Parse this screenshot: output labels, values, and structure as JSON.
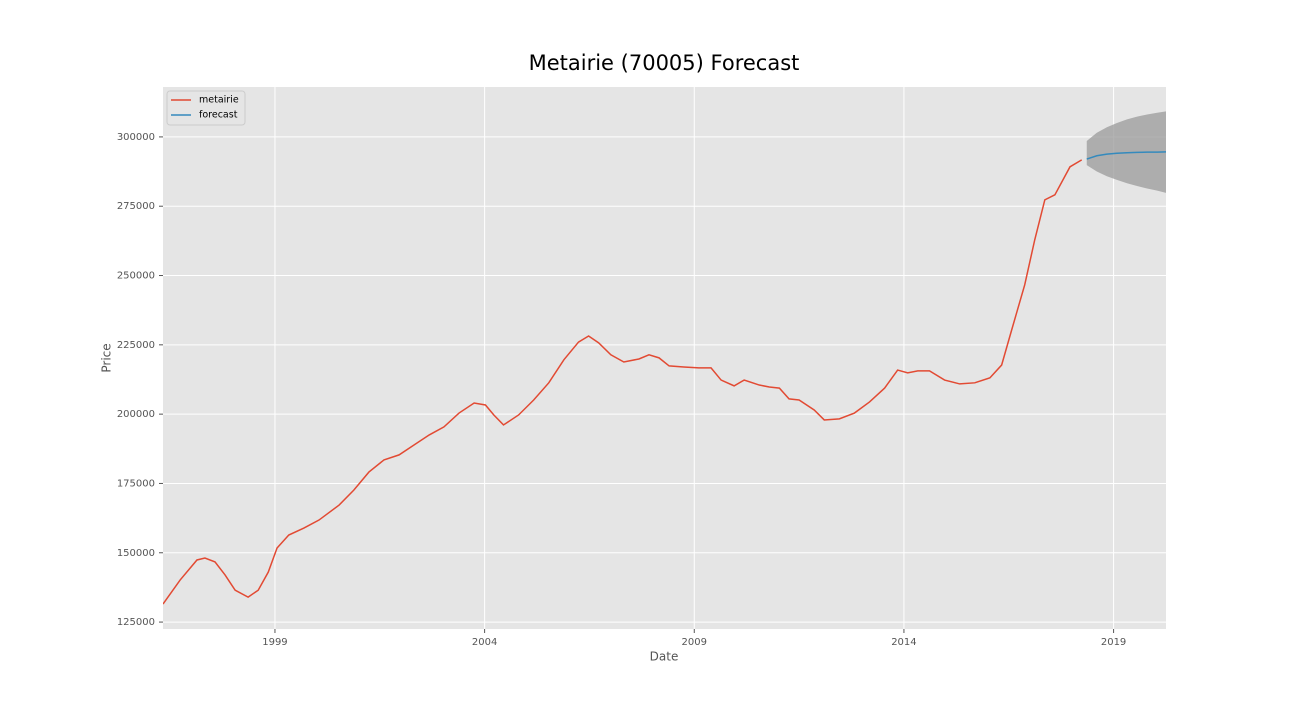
{
  "chart_data": {
    "type": "line",
    "title": "Metairie (70005) Forecast",
    "x_label": "Date",
    "y_label": "Price",
    "xlim": [
      1996.33,
      2020.25
    ],
    "xticks": [
      1999,
      2004,
      2009,
      2014,
      2019
    ],
    "ylim": [
      122500,
      318000
    ],
    "yticks": [
      125000,
      150000,
      175000,
      200000,
      225000,
      250000,
      275000,
      300000
    ],
    "grid": true,
    "legend": "upper-left",
    "band_color": "#999999",
    "series": [
      {
        "name": "metairie",
        "color": "#e24a33",
        "x": [
          1996.33,
          1996.74,
          1997.14,
          1997.33,
          1997.57,
          1997.81,
          1998.05,
          1998.36,
          1998.6,
          1998.84,
          1999.05,
          1999.33,
          1999.69,
          2000.05,
          2000.53,
          2000.88,
          2001.24,
          2001.6,
          2001.96,
          2002.32,
          2002.68,
          2003.03,
          2003.39,
          2003.75,
          2004.02,
          2004.22,
          2004.45,
          2004.81,
          2005.17,
          2005.53,
          2005.89,
          2006.24,
          2006.48,
          2006.72,
          2007.01,
          2007.32,
          2007.68,
          2007.92,
          2008.16,
          2008.4,
          2008.75,
          2009.11,
          2009.4,
          2009.64,
          2009.95,
          2010.19,
          2010.55,
          2010.79,
          2011.03,
          2011.26,
          2011.5,
          2011.86,
          2012.1,
          2012.46,
          2012.82,
          2013.18,
          2013.54,
          2013.85,
          2014.09,
          2014.33,
          2014.61,
          2014.97,
          2015.33,
          2015.69,
          2016.05,
          2016.33,
          2016.57,
          2016.88,
          2017.12,
          2017.36,
          2017.6,
          2017.96,
          2018.24
        ],
        "values": [
          131500,
          140200,
          147400,
          148100,
          146700,
          142000,
          136500,
          134000,
          136500,
          143000,
          151700,
          156400,
          158900,
          161800,
          167200,
          172600,
          179100,
          183500,
          185300,
          188900,
          192500,
          195400,
          200400,
          204000,
          203300,
          199700,
          196100,
          199700,
          205100,
          211300,
          219600,
          226000,
          228200,
          225700,
          221400,
          218800,
          219900,
          221400,
          220300,
          217400,
          217000,
          216700,
          216700,
          212300,
          210200,
          212300,
          210500,
          209800,
          209400,
          205500,
          205100,
          201500,
          197900,
          198300,
          200400,
          204400,
          209400,
          215900,
          214900,
          215600,
          215600,
          212300,
          210900,
          211300,
          213100,
          217700,
          230400,
          246600,
          262900,
          277300,
          279100,
          289200,
          291700
        ]
      },
      {
        "name": "forecast",
        "color": "#348abd",
        "x": [
          2018.36,
          2018.6,
          2018.84,
          2019.08,
          2019.32,
          2019.56,
          2019.8,
          2020.04,
          2020.25
        ],
        "values": [
          292000,
          293200,
          293800,
          294100,
          294300,
          294400,
          294500,
          294500,
          294600
        ],
        "ci_lower": [
          289800,
          287500,
          285800,
          284500,
          283300,
          282300,
          281400,
          280600,
          279800
        ],
        "ci_upper": [
          298500,
          301500,
          303500,
          305000,
          306300,
          307300,
          308100,
          308700,
          309200
        ]
      }
    ]
  }
}
